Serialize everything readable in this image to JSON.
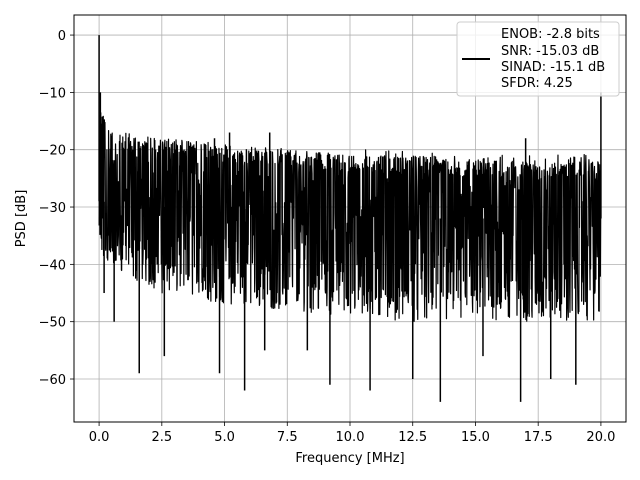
{
  "chart_data": {
    "type": "line",
    "title": "",
    "xlabel": "Frequency [MHz]",
    "ylabel": "PSD [dB]",
    "xlim": [
      -1.0,
      21.0
    ],
    "ylim": [
      -67.5,
      3.5
    ],
    "xticks": [
      0.0,
      2.5,
      5.0,
      7.5,
      10.0,
      12.5,
      15.0,
      17.5,
      20.0
    ],
    "xtick_labels": [
      "0.0",
      "2.5",
      "5.0",
      "7.5",
      "10.0",
      "12.5",
      "15.0",
      "17.5",
      "20.0"
    ],
    "yticks": [
      0,
      -10,
      -20,
      -30,
      -40,
      -50,
      -60
    ],
    "ytick_labels": [
      "0",
      "−10",
      "−20",
      "−30",
      "−40",
      "−50",
      "−60"
    ],
    "grid": true,
    "legend_position": "top-right",
    "legend_lines": [
      "ENOB: -2.8 bits",
      "SNR: -15.03 dB",
      "SINAD: -15.1 dB",
      "SFDR: 4.25"
    ],
    "series_color": "#000000",
    "series": [
      {
        "noise_floor_db": [
          [
            0.0,
            -29
          ],
          [
            2.5,
            -30
          ],
          [
            5.0,
            -30
          ],
          [
            7.5,
            -31
          ],
          [
            10.0,
            -31
          ],
          [
            12.5,
            -32
          ],
          [
            15.0,
            -32
          ],
          [
            17.5,
            -32
          ],
          [
            20.0,
            -32
          ]
        ],
        "envelope_top_db": [
          [
            0.1,
            -13
          ],
          [
            0.3,
            -15
          ],
          [
            1.0,
            -17
          ],
          [
            2.5,
            -18
          ],
          [
            5.0,
            -19
          ],
          [
            7.5,
            -20
          ],
          [
            10.0,
            -21
          ],
          [
            12.5,
            -21
          ],
          [
            15.0,
            -22
          ],
          [
            17.5,
            -22
          ],
          [
            20.0,
            -22
          ]
        ],
        "envelope_bottom_db": [
          [
            0.0,
            -40
          ],
          [
            2.5,
            -45
          ],
          [
            5.0,
            -47
          ],
          [
            7.5,
            -48
          ],
          [
            10.0,
            -49
          ],
          [
            12.5,
            -50
          ],
          [
            15.0,
            -50
          ],
          [
            17.5,
            -50
          ],
          [
            20.0,
            -50
          ]
        ],
        "peaks": [
          {
            "x": 0.0,
            "y": 0.0
          },
          {
            "x": 0.05,
            "y": -10
          },
          {
            "x": 4.6,
            "y": -18
          },
          {
            "x": 5.2,
            "y": -17
          },
          {
            "x": 6.8,
            "y": -17
          },
          {
            "x": 17.0,
            "y": -18
          },
          {
            "x": 20.0,
            "y": -10
          }
        ],
        "dips": [
          {
            "x": 0.2,
            "y": -45
          },
          {
            "x": 0.6,
            "y": -50
          },
          {
            "x": 1.6,
            "y": -59
          },
          {
            "x": 2.6,
            "y": -56
          },
          {
            "x": 4.8,
            "y": -59
          },
          {
            "x": 5.8,
            "y": -62
          },
          {
            "x": 6.6,
            "y": -55
          },
          {
            "x": 8.3,
            "y": -55
          },
          {
            "x": 9.2,
            "y": -61
          },
          {
            "x": 10.8,
            "y": -62
          },
          {
            "x": 12.5,
            "y": -60
          },
          {
            "x": 13.6,
            "y": -64
          },
          {
            "x": 15.3,
            "y": -56
          },
          {
            "x": 16.8,
            "y": -64
          },
          {
            "x": 18.0,
            "y": -60
          },
          {
            "x": 19.0,
            "y": -61
          }
        ]
      }
    ]
  }
}
